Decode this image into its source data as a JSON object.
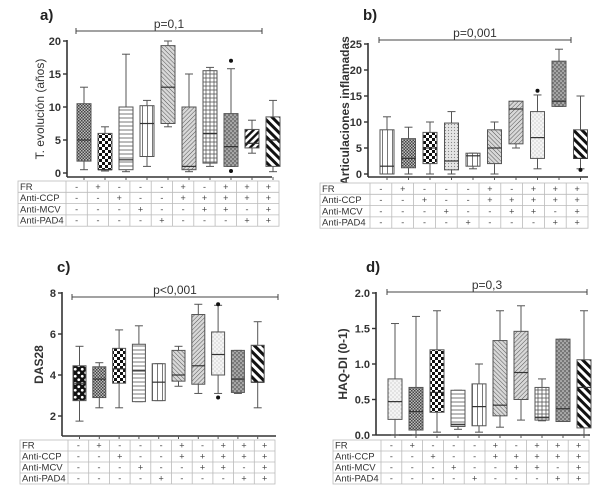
{
  "chart_data": [
    {
      "type": "box",
      "panel": "a)",
      "title": "",
      "ylabel": "T. evolución (años)",
      "xlabel": "",
      "ylim": [
        0,
        20
      ],
      "yticks": [
        0,
        5,
        10,
        15,
        20
      ],
      "yticklabels": [
        "0",
        "5",
        "10",
        "15",
        "20"
      ],
      "annotation": "p=0,1",
      "boxes": [
        {
          "pattern": "dense-cross",
          "min": 0.5,
          "q1": 1.8,
          "median": 5,
          "q3": 10.5,
          "max": 13,
          "outliers": []
        },
        {
          "pattern": "checker",
          "min": 0.3,
          "q1": 0.5,
          "median": 0.5,
          "q3": 6,
          "max": 7,
          "outliers": []
        },
        {
          "pattern": "hlines",
          "min": 0.2,
          "q1": 0.5,
          "median": 2,
          "q3": 10,
          "max": 18,
          "outliers": []
        },
        {
          "pattern": "vlines",
          "min": 1,
          "q1": 2.5,
          "median": 7.5,
          "q3": 10.2,
          "max": 11,
          "outliers": []
        },
        {
          "pattern": "diag-fine",
          "min": 7,
          "q1": 7.5,
          "median": 13,
          "q3": 19.3,
          "max": 20,
          "outliers": []
        },
        {
          "pattern": "back-diag",
          "min": 0.2,
          "q1": 0.5,
          "median": 1,
          "q3": 10,
          "max": 15,
          "outliers": []
        },
        {
          "pattern": "grid",
          "min": 1,
          "q1": 1.5,
          "median": 6,
          "q3": 15.5,
          "max": 16,
          "outliers": []
        },
        {
          "pattern": "dots-dense",
          "min": 1,
          "q1": 1,
          "median": 4,
          "q3": 9,
          "max": 15.8,
          "outliers": [
            17,
            0.3
          ]
        },
        {
          "pattern": "diag-bold-small",
          "min": 3,
          "q1": 3.8,
          "median": 4.5,
          "q3": 6.6,
          "max": 8,
          "outliers": []
        },
        {
          "pattern": "diag-thick",
          "min": 0.2,
          "q1": 1,
          "median": 5,
          "q3": 8.5,
          "max": 11,
          "outliers": []
        }
      ]
    },
    {
      "type": "box",
      "panel": "b)",
      "title": "",
      "ylabel": "Articulaciones inflamadas",
      "xlabel": "",
      "ylim": [
        0,
        25
      ],
      "yticks": [
        0,
        5,
        10,
        15,
        20,
        25
      ],
      "yticklabels": [
        "0",
        "5",
        "10",
        "15",
        "20",
        "25"
      ],
      "annotation": "p=0,001",
      "boxes": [
        {
          "pattern": "vlines",
          "min": 0,
          "q1": 0,
          "median": 1.5,
          "q3": 8.5,
          "max": 11,
          "outliers": []
        },
        {
          "pattern": "dense-cross",
          "min": 0,
          "q1": 1.2,
          "median": 3,
          "q3": 6.8,
          "max": 9,
          "outliers": []
        },
        {
          "pattern": "checker",
          "min": 0,
          "q1": 2,
          "median": 5,
          "q3": 8,
          "max": 10,
          "outliers": []
        },
        {
          "pattern": "dots-light",
          "min": 0,
          "q1": 0.8,
          "median": 2.5,
          "q3": 9.8,
          "max": 12,
          "outliers": []
        },
        {
          "pattern": "vlines",
          "min": 1,
          "q1": 1.5,
          "median": 3.5,
          "q3": 4,
          "max": 4,
          "outliers": []
        },
        {
          "pattern": "diag-fine",
          "min": 0,
          "q1": 2,
          "median": 5,
          "q3": 8.5,
          "max": 10,
          "outliers": []
        },
        {
          "pattern": "back-diag",
          "min": 5,
          "q1": 5.8,
          "median": 12.5,
          "q3": 14,
          "max": 14,
          "outliers": []
        },
        {
          "pattern": "dots-sparse",
          "min": 1,
          "q1": 3,
          "median": 7,
          "q3": 12,
          "max": 15.2,
          "outliers": [
            16
          ]
        },
        {
          "pattern": "dots-dense",
          "min": 13,
          "q1": 13,
          "median": 14,
          "q3": 21.7,
          "max": 24,
          "outliers": []
        },
        {
          "pattern": "diag-thick",
          "min": 1,
          "q1": 3,
          "median": 3,
          "q3": 8.5,
          "max": 15,
          "outliers": [
            0.8
          ]
        }
      ]
    },
    {
      "type": "box",
      "panel": "c)",
      "title": "",
      "ylabel": "DAS28",
      "xlabel": "",
      "ylim": [
        1,
        8
      ],
      "yticks": [
        2,
        4,
        6,
        8
      ],
      "yticklabels": [
        "2",
        "4",
        "6",
        "8"
      ],
      "annotation": "p<0,001",
      "boxes": [
        {
          "pattern": "big-dots",
          "min": 1.75,
          "q1": 2.75,
          "median": 3.6,
          "q3": 4.45,
          "max": 5.4,
          "outliers": []
        },
        {
          "pattern": "dense-cross",
          "min": 2.4,
          "q1": 2.9,
          "median": 3.8,
          "q3": 4.4,
          "max": 4.6,
          "outliers": []
        },
        {
          "pattern": "checker",
          "min": 2.4,
          "q1": 3.6,
          "median": 4.3,
          "q3": 5.3,
          "max": 6.2,
          "outliers": []
        },
        {
          "pattern": "hlines",
          "min": 2.7,
          "q1": 2.7,
          "median": 4.2,
          "q3": 5.5,
          "max": 6.4,
          "outliers": []
        },
        {
          "pattern": "vlines",
          "min": 2.75,
          "q1": 2.75,
          "median": 3.65,
          "q3": 4.55,
          "max": 4.55,
          "outliers": []
        },
        {
          "pattern": "diag-fine",
          "min": 3.45,
          "q1": 3.7,
          "median": 4.0,
          "q3": 5.2,
          "max": 5.4,
          "outliers": []
        },
        {
          "pattern": "back-diag",
          "min": 3.1,
          "q1": 3.55,
          "median": 4.45,
          "q3": 6.95,
          "max": 7.45,
          "outliers": []
        },
        {
          "pattern": "dots-sparse",
          "min": 3.1,
          "q1": 4.0,
          "median": 5.0,
          "q3": 6.1,
          "max": 7.4,
          "outliers": [
            7.45,
            2.9
          ]
        },
        {
          "pattern": "dots-dense",
          "min": 3.1,
          "q1": 3.15,
          "median": 3.8,
          "q3": 5.2,
          "max": 5.2,
          "outliers": []
        },
        {
          "pattern": "diag-thick",
          "min": 2.4,
          "q1": 3.65,
          "median": 3.65,
          "q3": 5.45,
          "max": 6.6,
          "outliers": []
        }
      ]
    },
    {
      "type": "box",
      "panel": "d)",
      "title": "",
      "ylabel": "HAQ-DI (0-1)",
      "xlabel": "",
      "ylim": [
        0,
        2
      ],
      "yticks": [
        0,
        0.5,
        1.0,
        1.5,
        2.0
      ],
      "yticklabels": [
        "0.0",
        "0.5",
        "1.0",
        "1.5",
        "2.0"
      ],
      "annotation": "p=0,3",
      "boxes": [
        {
          "pattern": "dots-sparse",
          "min": 0,
          "q1": 0.22,
          "median": 0.47,
          "q3": 0.79,
          "max": 1.57,
          "outliers": []
        },
        {
          "pattern": "dense-cross",
          "min": 0,
          "q1": 0.07,
          "median": 0.33,
          "q3": 0.67,
          "max": 1.67,
          "outliers": []
        },
        {
          "pattern": "checker",
          "min": 0.04,
          "q1": 0.32,
          "median": 0.6,
          "q3": 1.2,
          "max": 1.75,
          "outliers": []
        },
        {
          "pattern": "hlines",
          "min": 0.08,
          "q1": 0.12,
          "median": 0.15,
          "q3": 0.63,
          "max": 0.63,
          "outliers": []
        },
        {
          "pattern": "vlines",
          "min": 0.04,
          "q1": 0.13,
          "median": 0.4,
          "q3": 0.72,
          "max": 1.0,
          "outliers": []
        },
        {
          "pattern": "diag-fine",
          "min": 0.11,
          "q1": 0.27,
          "median": 0.42,
          "q3": 1.33,
          "max": 1.75,
          "outliers": []
        },
        {
          "pattern": "back-diag",
          "min": 0.21,
          "q1": 0.5,
          "median": 0.88,
          "q3": 1.46,
          "max": 1.82,
          "outliers": []
        },
        {
          "pattern": "grid",
          "min": 0.2,
          "q1": 0.21,
          "median": 0.25,
          "q3": 0.67,
          "max": 0.79,
          "outliers": []
        },
        {
          "pattern": "dots-dense",
          "min": 0.19,
          "q1": 0.19,
          "median": 0.37,
          "q3": 1.35,
          "max": 1.35,
          "outliers": []
        },
        {
          "pattern": "diag-thick",
          "min": 0,
          "q1": 0.1,
          "median": 0.67,
          "q3": 1.06,
          "max": 1.75,
          "outliers": []
        }
      ]
    }
  ],
  "table": {
    "rows": [
      {
        "label": "FR",
        "signs": [
          "-",
          "+",
          "-",
          "-",
          "-",
          "+",
          "-",
          "+",
          "+",
          "+"
        ]
      },
      {
        "label": "Anti-CCP",
        "signs": [
          "-",
          "-",
          "+",
          "-",
          "-",
          "+",
          "+",
          "+",
          "+",
          "+"
        ]
      },
      {
        "label": "Anti-MCV",
        "signs": [
          "-",
          "-",
          "-",
          "+",
          "-",
          "-",
          "+",
          "+",
          "-",
          "+"
        ]
      },
      {
        "label": "Anti-PAD4",
        "signs": [
          "-",
          "-",
          "-",
          "-",
          "+",
          "-",
          "-",
          "-",
          "+",
          "+"
        ]
      }
    ]
  }
}
